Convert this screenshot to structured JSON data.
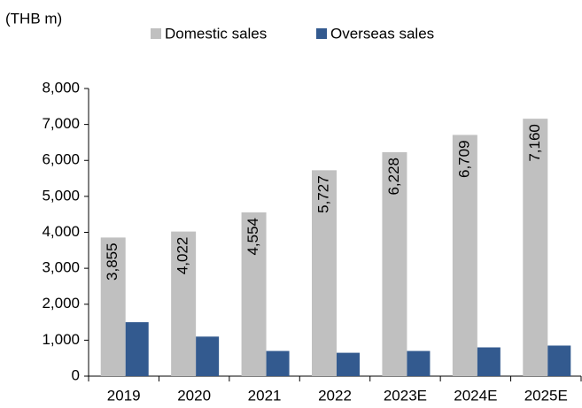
{
  "chart_data": {
    "type": "bar",
    "unit_label": "(THB m)",
    "categories": [
      "2019",
      "2020",
      "2021",
      "2022",
      "2023E",
      "2024E",
      "2025E"
    ],
    "series": [
      {
        "name": "Domestic sales",
        "color": "#c0c0c0",
        "values": [
          3855,
          4022,
          4554,
          5727,
          6228,
          6709,
          7160
        ],
        "value_labels": [
          "3,855",
          "4,022",
          "4,554",
          "5,727",
          "6,228",
          "6,709",
          "7,160"
        ]
      },
      {
        "name": "Overseas sales",
        "color": "#335a8f",
        "values": [
          1500,
          1100,
          700,
          650,
          700,
          800,
          850
        ]
      }
    ],
    "ylim": [
      0,
      8000
    ],
    "yticks": [
      0,
      {
        "value": 1000,
        "label": "1,000"
      },
      {
        "value": 2000,
        "label": "2,000"
      },
      {
        "value": 3000,
        "label": "3,000"
      },
      {
        "value": 4000,
        "label": "4,000"
      },
      {
        "value": 5000,
        "label": "5,000"
      },
      {
        "value": 6000,
        "label": "6,000"
      },
      {
        "value": 7000,
        "label": "7,000"
      },
      {
        "value": 8000,
        "label": "8,000"
      }
    ],
    "legend": "top"
  }
}
